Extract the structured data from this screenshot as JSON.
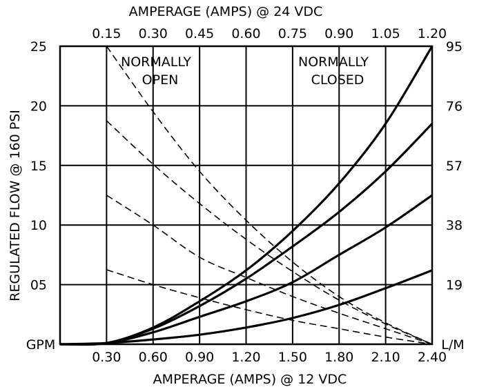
{
  "chart_data": {
    "type": "line",
    "title": "",
    "top_axis": {
      "label": "AMPERAGE (AMPS) @ 24 VDC",
      "ticks": [
        "0.15",
        "0.30",
        "0.45",
        "0.60",
        "0.75",
        "0.90",
        "1.05",
        "1.20"
      ]
    },
    "bottom_axis": {
      "label": "AMPERAGE (AMPS) @ 12 VDC",
      "ticks": [
        "0.30",
        "0.60",
        "0.90",
        "1.20",
        "1.50",
        "1.80",
        "2.10",
        "2.40"
      ],
      "xlim": [
        0.0,
        2.4
      ]
    },
    "left_axis": {
      "label": "REGULATED FLOW @ 160 PSI",
      "unit": "GPM",
      "ticks": [
        "05",
        "10",
        "15",
        "20",
        "25"
      ],
      "ylim": [
        0,
        25
      ]
    },
    "right_axis": {
      "unit": "L/M",
      "ticks": [
        "19",
        "38",
        "57",
        "76",
        "95"
      ]
    },
    "regions": [
      "NORMALLY OPEN",
      "NORMALLY CLOSED"
    ],
    "grid": true,
    "series": [
      {
        "style": "dashed",
        "x": [
          0.3,
          0.6,
          0.9,
          1.2,
          1.5,
          1.8,
          2.1,
          2.4
        ],
        "y": [
          25.0,
          19.5,
          14.5,
          10.4,
          6.9,
          4.0,
          1.8,
          0.0
        ]
      },
      {
        "style": "dashed",
        "x": [
          0.3,
          0.6,
          0.9,
          1.2,
          1.5,
          1.8,
          2.1,
          2.4
        ],
        "y": [
          18.75,
          15.1,
          11.8,
          8.8,
          6.1,
          3.7,
          1.7,
          0.0
        ]
      },
      {
        "style": "dashed",
        "x": [
          0.3,
          0.6,
          0.9,
          1.2,
          1.5,
          1.8,
          2.1,
          2.4
        ],
        "y": [
          12.5,
          10.0,
          7.3,
          5.6,
          4.0,
          2.6,
          1.3,
          0.0
        ]
      },
      {
        "style": "dashed",
        "x": [
          0.3,
          0.6,
          0.9,
          1.2,
          1.5,
          1.8,
          2.1,
          2.4
        ],
        "y": [
          6.25,
          5.0,
          3.9,
          2.9,
          2.0,
          1.3,
          0.6,
          0.0
        ]
      },
      {
        "style": "solid",
        "x": [
          0.0,
          0.3,
          0.6,
          0.9,
          1.2,
          1.5,
          1.8,
          2.1,
          2.4
        ],
        "y": [
          0.0,
          0.1,
          1.4,
          3.6,
          6.2,
          9.5,
          13.5,
          18.5,
          25.0
        ]
      },
      {
        "style": "solid",
        "x": [
          0.0,
          0.3,
          0.6,
          0.9,
          1.2,
          1.5,
          1.8,
          2.1,
          2.4
        ],
        "y": [
          0.0,
          0.1,
          1.3,
          3.2,
          5.5,
          8.2,
          11.1,
          14.5,
          18.5
        ]
      },
      {
        "style": "solid",
        "x": [
          0.0,
          0.3,
          0.6,
          0.9,
          1.2,
          1.5,
          1.8,
          2.1,
          2.4
        ],
        "y": [
          0.0,
          0.1,
          1.0,
          2.3,
          3.6,
          5.2,
          7.5,
          9.8,
          12.5
        ]
      },
      {
        "style": "solid",
        "x": [
          0.0,
          0.3,
          0.6,
          0.9,
          1.2,
          1.5,
          1.8,
          2.1,
          2.4
        ],
        "y": [
          0.0,
          0.1,
          0.4,
          0.8,
          1.4,
          2.2,
          3.3,
          4.7,
          6.2
        ]
      }
    ]
  }
}
